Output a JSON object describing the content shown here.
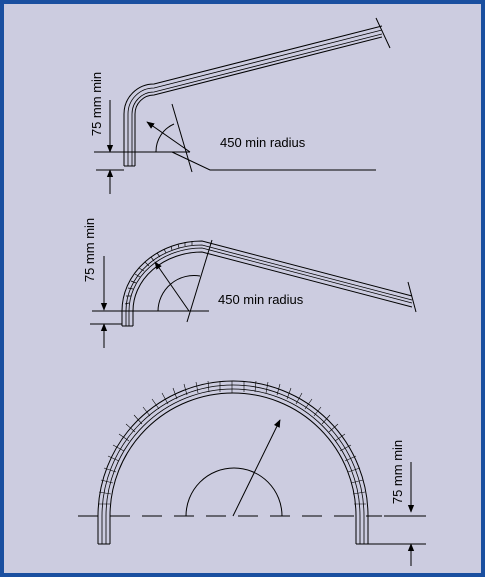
{
  "diagrams": [
    {
      "dimension_label": "75 mm min",
      "radius_label": "450 min radius"
    },
    {
      "dimension_label": "75 mm min",
      "radius_label": "450 min radius"
    },
    {
      "dimension_label": "75 mm min"
    }
  ],
  "colors": {
    "frame_border": "#1a4fa0",
    "background": "#cccce0",
    "ink": "#000000"
  }
}
